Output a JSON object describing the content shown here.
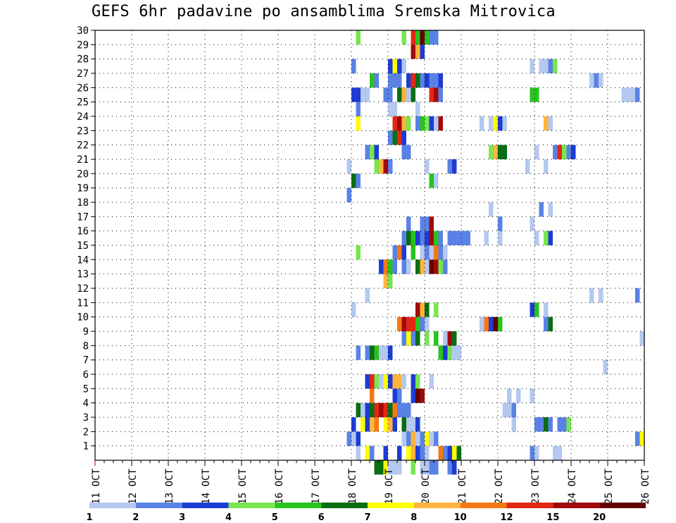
{
  "title": "GEFS 6hr padavine po ansamblima Sremska Mitrovica",
  "chart_data": {
    "type": "heatmap",
    "title": "GEFS 6hr padavine po ansamblima Sremska Mitrovica",
    "xlabel": "",
    "ylabel": "",
    "x_ticks": [
      "11 OCT",
      "12 OCT",
      "13 OCT",
      "14 OCT",
      "15 OCT",
      "16 OCT",
      "17 OCT",
      "18 OCT",
      "19 OCT",
      "20 OCT",
      "21 OCT",
      "22 OCT",
      "23 OCT",
      "24 OCT",
      "25 OCT",
      "26 OCT"
    ],
    "y_ticks": [
      1,
      2,
      3,
      4,
      5,
      6,
      7,
      8,
      9,
      10,
      11,
      12,
      13,
      14,
      15,
      16,
      17,
      18,
      19,
      20,
      21,
      22,
      23,
      24,
      25,
      26,
      27,
      28,
      29,
      30
    ],
    "x_range_days": [
      0,
      15
    ],
    "y_range": [
      0,
      30
    ],
    "grid": true,
    "colorbar": {
      "levels": [
        "1",
        "2",
        "3",
        "4",
        "5",
        "6",
        "7",
        "8",
        "10",
        "12",
        "15",
        "20"
      ],
      "colors": [
        "#b4c8f0",
        "#5a82e6",
        "#1e3cd2",
        "#78e650",
        "#28c31e",
        "#0a6e14",
        "#ffff00",
        "#ffb43c",
        "#f57814",
        "#e12814",
        "#a00a0a",
        "#640000"
      ]
    },
    "cells": [
      [
        1,
        57,
        1
      ],
      [
        1,
        59,
        7
      ],
      [
        1,
        60,
        2
      ],
      [
        1,
        63,
        3
      ],
      [
        1,
        66,
        3
      ],
      [
        1,
        68,
        7
      ],
      [
        1,
        69,
        8
      ],
      [
        1,
        70,
        3
      ],
      [
        1,
        71,
        2
      ],
      [
        1,
        72,
        1
      ],
      [
        1,
        75,
        9
      ],
      [
        1,
        76,
        2
      ],
      [
        1,
        77,
        3
      ],
      [
        1,
        78,
        7
      ],
      [
        1,
        79,
        6
      ],
      [
        1,
        95,
        2
      ],
      [
        1,
        96,
        1
      ],
      [
        1,
        100,
        1
      ],
      [
        1,
        101,
        1
      ],
      [
        2,
        55,
        2
      ],
      [
        2,
        56,
        1
      ],
      [
        2,
        57,
        3
      ],
      [
        2,
        67,
        1
      ],
      [
        2,
        68,
        2
      ],
      [
        2,
        69,
        8
      ],
      [
        2,
        70,
        1
      ],
      [
        2,
        71,
        2
      ],
      [
        2,
        72,
        7
      ],
      [
        2,
        73,
        1
      ],
      [
        2,
        74,
        2
      ],
      [
        2,
        118,
        2
      ],
      [
        2,
        119,
        7
      ],
      [
        3,
        56,
        3
      ],
      [
        3,
        58,
        7
      ],
      [
        3,
        59,
        3
      ],
      [
        3,
        60,
        8
      ],
      [
        3,
        61,
        9
      ],
      [
        3,
        63,
        7
      ],
      [
        3,
        64,
        8
      ],
      [
        3,
        65,
        3
      ],
      [
        3,
        67,
        6
      ],
      [
        3,
        68,
        1
      ],
      [
        3,
        69,
        1
      ],
      [
        3,
        70,
        3
      ],
      [
        3,
        91,
        1
      ],
      [
        3,
        96,
        2
      ],
      [
        3,
        97,
        2
      ],
      [
        3,
        98,
        6
      ],
      [
        3,
        99,
        2
      ],
      [
        3,
        101,
        2
      ],
      [
        3,
        102,
        2
      ],
      [
        3,
        103,
        4
      ],
      [
        4,
        57,
        6
      ],
      [
        4,
        58,
        1
      ],
      [
        4,
        59,
        3
      ],
      [
        4,
        60,
        6
      ],
      [
        4,
        61,
        10
      ],
      [
        4,
        62,
        11
      ],
      [
        4,
        63,
        10
      ],
      [
        4,
        64,
        6
      ],
      [
        4,
        65,
        9
      ],
      [
        4,
        66,
        2
      ],
      [
        4,
        67,
        2
      ],
      [
        4,
        68,
        2
      ],
      [
        4,
        89,
        1
      ],
      [
        4,
        90,
        1
      ],
      [
        4,
        91,
        2
      ],
      [
        5,
        60,
        9
      ],
      [
        5,
        65,
        3
      ],
      [
        5,
        66,
        2
      ],
      [
        5,
        69,
        3
      ],
      [
        5,
        70,
        12
      ],
      [
        5,
        71,
        11
      ],
      [
        5,
        90,
        1
      ],
      [
        5,
        92,
        1
      ],
      [
        5,
        95,
        1
      ],
      [
        6,
        59,
        3
      ],
      [
        6,
        60,
        10
      ],
      [
        6,
        61,
        4
      ],
      [
        6,
        62,
        1
      ],
      [
        6,
        63,
        7
      ],
      [
        6,
        64,
        3
      ],
      [
        6,
        65,
        8
      ],
      [
        6,
        66,
        8
      ],
      [
        6,
        67,
        1
      ],
      [
        6,
        69,
        3
      ],
      [
        6,
        70,
        4
      ],
      [
        6,
        73,
        1
      ],
      [
        7,
        111,
        1
      ],
      [
        8,
        57,
        2
      ],
      [
        8,
        59,
        2
      ],
      [
        8,
        60,
        6
      ],
      [
        8,
        61,
        5
      ],
      [
        8,
        62,
        1
      ],
      [
        8,
        63,
        1
      ],
      [
        8,
        64,
        3
      ],
      [
        8,
        75,
        5
      ],
      [
        8,
        76,
        3
      ],
      [
        8,
        77,
        4
      ],
      [
        8,
        78,
        1
      ],
      [
        8,
        79,
        1
      ],
      [
        9,
        67,
        2
      ],
      [
        9,
        68,
        7
      ],
      [
        9,
        69,
        2
      ],
      [
        9,
        70,
        6
      ],
      [
        9,
        72,
        4
      ],
      [
        9,
        74,
        5
      ],
      [
        9,
        76,
        1
      ],
      [
        9,
        77,
        11
      ],
      [
        9,
        78,
        6
      ],
      [
        9,
        119,
        1
      ],
      [
        10,
        66,
        9
      ],
      [
        10,
        67,
        11
      ],
      [
        10,
        68,
        10
      ],
      [
        10,
        69,
        10
      ],
      [
        10,
        70,
        5
      ],
      [
        10,
        71,
        2
      ],
      [
        10,
        72,
        1
      ],
      [
        10,
        84,
        1
      ],
      [
        10,
        85,
        9
      ],
      [
        10,
        86,
        3
      ],
      [
        10,
        87,
        12
      ],
      [
        10,
        88,
        5
      ],
      [
        10,
        98,
        2
      ],
      [
        10,
        99,
        6
      ],
      [
        11,
        56,
        1
      ],
      [
        11,
        70,
        11
      ],
      [
        11,
        71,
        8
      ],
      [
        11,
        72,
        6
      ],
      [
        11,
        74,
        4
      ],
      [
        11,
        95,
        3
      ],
      [
        11,
        96,
        5
      ],
      [
        11,
        98,
        1
      ],
      [
        12,
        59,
        1
      ],
      [
        12,
        108,
        1
      ],
      [
        12,
        110,
        1
      ],
      [
        12,
        118,
        2
      ],
      [
        13,
        63,
        8
      ],
      [
        13,
        64,
        4
      ],
      [
        14,
        62,
        3
      ],
      [
        14,
        63,
        9
      ],
      [
        14,
        64,
        5
      ],
      [
        14,
        65,
        2
      ],
      [
        14,
        67,
        2
      ],
      [
        14,
        68,
        1
      ],
      [
        14,
        70,
        6
      ],
      [
        14,
        71,
        8
      ],
      [
        14,
        72,
        1
      ],
      [
        14,
        73,
        12
      ],
      [
        14,
        74,
        11
      ],
      [
        14,
        75,
        4
      ],
      [
        14,
        76,
        2
      ],
      [
        15,
        57,
        4
      ],
      [
        15,
        65,
        2
      ],
      [
        15,
        66,
        9
      ],
      [
        15,
        67,
        3
      ],
      [
        15,
        69,
        5
      ],
      [
        15,
        71,
        1
      ],
      [
        15,
        72,
        2
      ],
      [
        15,
        73,
        1
      ],
      [
        15,
        74,
        9
      ],
      [
        15,
        75,
        2
      ],
      [
        15,
        76,
        1
      ],
      [
        16,
        67,
        2
      ],
      [
        16,
        68,
        6
      ],
      [
        16,
        69,
        5
      ],
      [
        16,
        70,
        3
      ],
      [
        16,
        71,
        2
      ],
      [
        16,
        72,
        3
      ],
      [
        16,
        73,
        11
      ],
      [
        16,
        74,
        5
      ],
      [
        16,
        75,
        2
      ],
      [
        16,
        77,
        2
      ],
      [
        16,
        78,
        2
      ],
      [
        16,
        79,
        2
      ],
      [
        16,
        80,
        2
      ],
      [
        16,
        81,
        2
      ],
      [
        16,
        85,
        1
      ],
      [
        16,
        88,
        1
      ],
      [
        16,
        96,
        1
      ],
      [
        16,
        98,
        4
      ],
      [
        16,
        99,
        3
      ],
      [
        17,
        68,
        2
      ],
      [
        17,
        71,
        2
      ],
      [
        17,
        72,
        2
      ],
      [
        17,
        73,
        11
      ],
      [
        17,
        88,
        2
      ],
      [
        17,
        95,
        1
      ],
      [
        18,
        86,
        1
      ],
      [
        18,
        97,
        2
      ],
      [
        18,
        99,
        1
      ],
      [
        19,
        55,
        2
      ],
      [
        20,
        56,
        6
      ],
      [
        20,
        57,
        2
      ],
      [
        20,
        73,
        5
      ],
      [
        20,
        74,
        1
      ],
      [
        21,
        55,
        1
      ],
      [
        21,
        61,
        4
      ],
      [
        21,
        62,
        8
      ],
      [
        21,
        63,
        11
      ],
      [
        21,
        64,
        2
      ],
      [
        21,
        72,
        1
      ],
      [
        21,
        77,
        2
      ],
      [
        21,
        78,
        3
      ],
      [
        21,
        94,
        1
      ],
      [
        21,
        98,
        1
      ],
      [
        22,
        59,
        2
      ],
      [
        22,
        60,
        4
      ],
      [
        22,
        61,
        3
      ],
      [
        22,
        67,
        2
      ],
      [
        22,
        68,
        2
      ],
      [
        22,
        86,
        4
      ],
      [
        22,
        87,
        8
      ],
      [
        22,
        88,
        6
      ],
      [
        22,
        89,
        6
      ],
      [
        22,
        96,
        1
      ],
      [
        22,
        100,
        2
      ],
      [
        22,
        101,
        10
      ],
      [
        22,
        102,
        4
      ],
      [
        22,
        103,
        2
      ],
      [
        22,
        104,
        3
      ],
      [
        23,
        64,
        2
      ],
      [
        23,
        65,
        6
      ],
      [
        23,
        66,
        10
      ],
      [
        23,
        67,
        3
      ],
      [
        24,
        57,
        7
      ],
      [
        24,
        65,
        10
      ],
      [
        24,
        66,
        11
      ],
      [
        24,
        67,
        8
      ],
      [
        24,
        68,
        4
      ],
      [
        24,
        70,
        2
      ],
      [
        24,
        71,
        5
      ],
      [
        24,
        72,
        4
      ],
      [
        24,
        73,
        3
      ],
      [
        24,
        74,
        1
      ],
      [
        24,
        75,
        11
      ],
      [
        24,
        84,
        1
      ],
      [
        24,
        86,
        1
      ],
      [
        24,
        87,
        7
      ],
      [
        24,
        88,
        3
      ],
      [
        24,
        89,
        1
      ],
      [
        24,
        98,
        8
      ],
      [
        24,
        99,
        1
      ],
      [
        25,
        57,
        2
      ],
      [
        25,
        64,
        1
      ],
      [
        25,
        65,
        1
      ],
      [
        25,
        70,
        1
      ],
      [
        26,
        56,
        3
      ],
      [
        26,
        57,
        3
      ],
      [
        26,
        58,
        1
      ],
      [
        26,
        59,
        1
      ],
      [
        26,
        63,
        2
      ],
      [
        26,
        64,
        2
      ],
      [
        26,
        66,
        6
      ],
      [
        26,
        67,
        8
      ],
      [
        26,
        68,
        1
      ],
      [
        26,
        69,
        6
      ],
      [
        26,
        73,
        10
      ],
      [
        26,
        74,
        11
      ],
      [
        26,
        75,
        2
      ],
      [
        26,
        95,
        5
      ],
      [
        26,
        96,
        5
      ],
      [
        26,
        115,
        1
      ],
      [
        26,
        116,
        1
      ],
      [
        26,
        117,
        1
      ],
      [
        26,
        118,
        2
      ],
      [
        27,
        60,
        5
      ],
      [
        27,
        61,
        2
      ],
      [
        27,
        64,
        2
      ],
      [
        27,
        65,
        2
      ],
      [
        27,
        66,
        2
      ],
      [
        27,
        68,
        3
      ],
      [
        27,
        69,
        10
      ],
      [
        27,
        70,
        6
      ],
      [
        27,
        71,
        2
      ],
      [
        27,
        72,
        3
      ],
      [
        27,
        73,
        2
      ],
      [
        27,
        74,
        2
      ],
      [
        27,
        75,
        3
      ],
      [
        27,
        108,
        1
      ],
      [
        27,
        109,
        2
      ],
      [
        27,
        110,
        1
      ],
      [
        28,
        56,
        2
      ],
      [
        28,
        64,
        3
      ],
      [
        28,
        65,
        7
      ],
      [
        28,
        66,
        3
      ],
      [
        28,
        67,
        1
      ],
      [
        28,
        95,
        1
      ],
      [
        28,
        97,
        1
      ],
      [
        28,
        98,
        1
      ],
      [
        28,
        99,
        2
      ],
      [
        28,
        100,
        4
      ],
      [
        29,
        69,
        11
      ],
      [
        29,
        70,
        8
      ],
      [
        29,
        71,
        3
      ],
      [
        30,
        57,
        4
      ],
      [
        30,
        67,
        4
      ],
      [
        30,
        69,
        10
      ],
      [
        30,
        70,
        5
      ],
      [
        30,
        71,
        12
      ],
      [
        30,
        72,
        5
      ],
      [
        30,
        73,
        2
      ],
      [
        30,
        74,
        2
      ],
      [
        0,
        61,
        6
      ],
      [
        0,
        62,
        6
      ],
      [
        0,
        63,
        7
      ],
      [
        0,
        64,
        1
      ],
      [
        0,
        65,
        1
      ],
      [
        0,
        66,
        1
      ],
      [
        0,
        69,
        4
      ],
      [
        0,
        71,
        1
      ],
      [
        0,
        72,
        1
      ],
      [
        0,
        73,
        2
      ],
      [
        0,
        74,
        2
      ],
      [
        0,
        77,
        2
      ],
      [
        0,
        78,
        3
      ]
    ]
  }
}
